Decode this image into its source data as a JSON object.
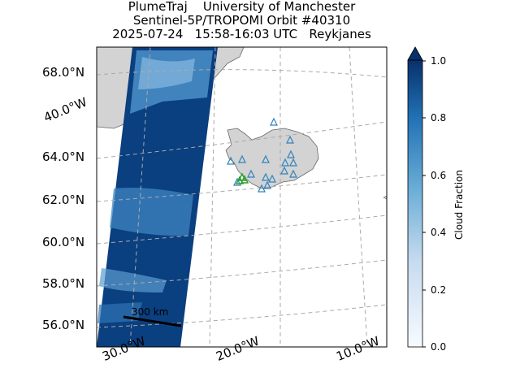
{
  "title": {
    "line1": "PlumeTraj    University of Manchester",
    "line2": "Sentinel-5P/TROPOMI Orbit #40310",
    "line3": "2025-07-24   15:58-16:03 UTC   Reykjanes"
  },
  "lat_labels": [
    "68.0°N",
    "64.0°N",
    "62.0°N",
    "60.0°N",
    "58.0°N",
    "56.0°N"
  ],
  "lon_labels": [
    "40.0°W",
    "30.0°W",
    "20.0°W",
    "10.0°W"
  ],
  "scale_bar": "300 km",
  "colorbar": {
    "label": "Cloud Fraction",
    "ticks": [
      "1.0",
      "0.8",
      "0.6",
      "0.4",
      "0.2",
      "0.0"
    ],
    "colors": {
      "high": "#08306b",
      "mid": "#4292c6",
      "low": "#f7fbff"
    }
  },
  "colors": {
    "land": "#d3d3d3",
    "volcano_marker": "#3182bd",
    "source_marker": "#2ca02c"
  }
}
